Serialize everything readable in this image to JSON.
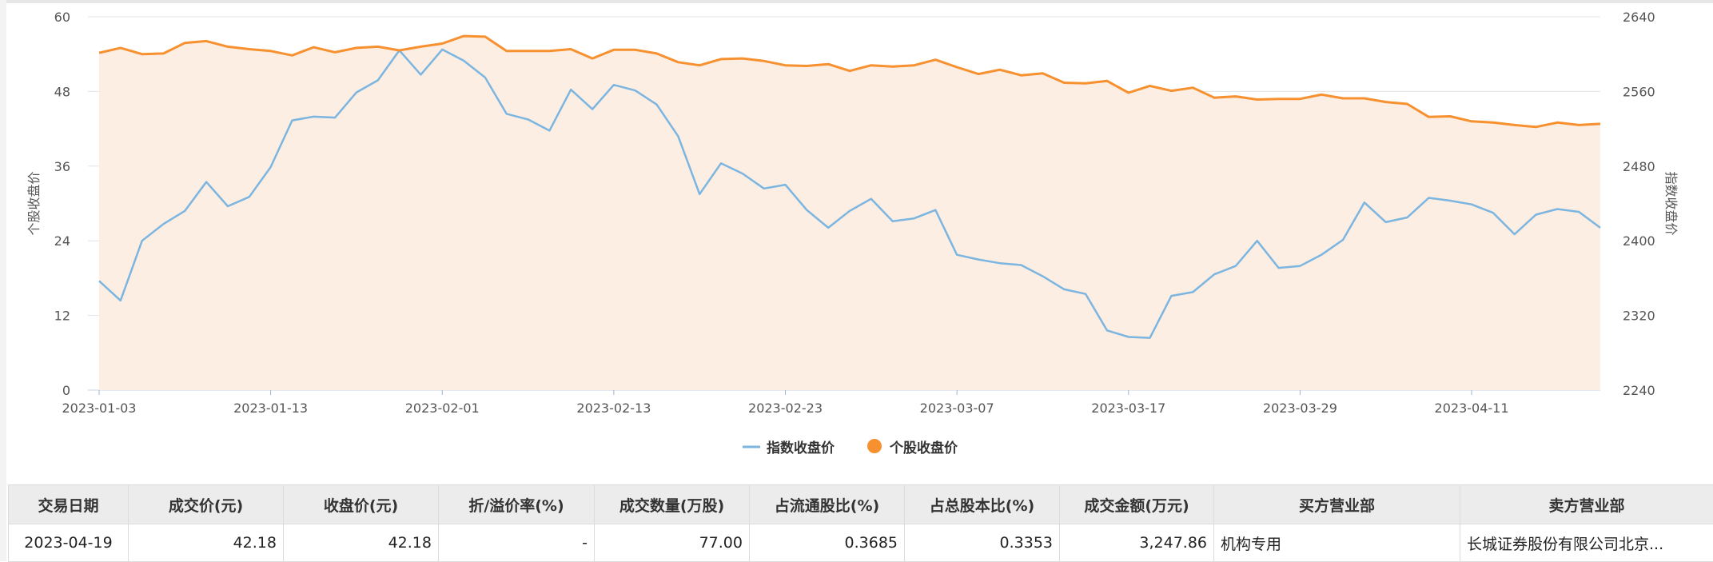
{
  "chart_data": {
    "type": "line",
    "y_left_label": "个股收盘价",
    "y_right_label": "指数收盘价",
    "y_left_lim": [
      0,
      60
    ],
    "y_left_ticks": [
      "0",
      "12",
      "24",
      "36",
      "48",
      "60"
    ],
    "y_right_lim": [
      2240,
      2640
    ],
    "y_right_ticks": [
      "2240",
      "2320",
      "2400",
      "2480",
      "2560",
      "2640"
    ],
    "x_tick_labels": [
      "2023-01-03",
      "2023-01-13",
      "2023-02-01",
      "2023-02-13",
      "2023-02-23",
      "2023-03-07",
      "2023-03-17",
      "2023-03-29",
      "2023-04-11"
    ],
    "x_tick_indices": [
      0,
      8,
      16,
      24,
      32,
      40,
      48,
      56,
      64
    ],
    "grid": true,
    "legend_position": "bottom-center",
    "series": [
      {
        "name": "指数收盘价",
        "axis": "right",
        "color": "#7bb5e0",
        "values": [
          2357,
          2336,
          2400,
          2418,
          2432,
          2463,
          2437,
          2447,
          2479,
          2529,
          2533,
          2532,
          2559,
          2572,
          2604,
          2578,
          2605,
          2593,
          2575,
          2536,
          2530,
          2518,
          2562,
          2541,
          2567,
          2561,
          2546,
          2512,
          2450,
          2483,
          2472,
          2456,
          2460,
          2433,
          2414,
          2432,
          2445,
          2421,
          2424,
          2433,
          2385,
          2380,
          2376,
          2374,
          2362,
          2348,
          2343,
          2304,
          2297,
          2296,
          2341,
          2345,
          2364,
          2373,
          2400,
          2371,
          2373,
          2385,
          2401,
          2441,
          2420,
          2425,
          2446,
          2443,
          2439,
          2430,
          2407,
          2428,
          2434,
          2431,
          2414
        ]
      },
      {
        "name": "个股收盘价",
        "axis": "left",
        "color": "#f7902f",
        "values": [
          54.2,
          55.0,
          54.0,
          54.1,
          55.8,
          56.1,
          55.2,
          54.8,
          54.5,
          53.8,
          55.1,
          54.3,
          55.0,
          55.2,
          54.6,
          55.2,
          55.7,
          56.9,
          56.8,
          54.5,
          54.5,
          54.5,
          54.8,
          53.3,
          54.7,
          54.7,
          54.1,
          52.7,
          52.2,
          53.2,
          53.3,
          52.9,
          52.2,
          52.1,
          52.4,
          51.3,
          52.2,
          52.0,
          52.2,
          53.1,
          51.9,
          50.8,
          51.5,
          50.6,
          50.9,
          49.4,
          49.3,
          49.7,
          47.8,
          48.9,
          48.1,
          48.6,
          47.0,
          47.2,
          46.7,
          46.8,
          46.8,
          47.5,
          46.9,
          46.9,
          46.3,
          46.0,
          43.9,
          44.0,
          43.2,
          43.0,
          42.6,
          42.3,
          43.0,
          42.6,
          42.8
        ]
      }
    ]
  },
  "legend": {
    "index_label": "指数收盘价",
    "stock_label": "个股收盘价"
  },
  "table": {
    "headers": [
      "交易日期",
      "成交价(元)",
      "收盘价(元)",
      "折/溢价率(%)",
      "成交数量(万股)",
      "占流通股比(%)",
      "占总股本比(%)",
      "成交金额(万元)",
      "买方营业部",
      "卖方营业部"
    ],
    "rows": [
      [
        "2023-04-19",
        "42.18",
        "42.18",
        "-",
        "77.00",
        "0.3685",
        "0.3353",
        "3,247.86",
        "机构专用",
        "长城证券股份有限公司北京..."
      ]
    ]
  }
}
